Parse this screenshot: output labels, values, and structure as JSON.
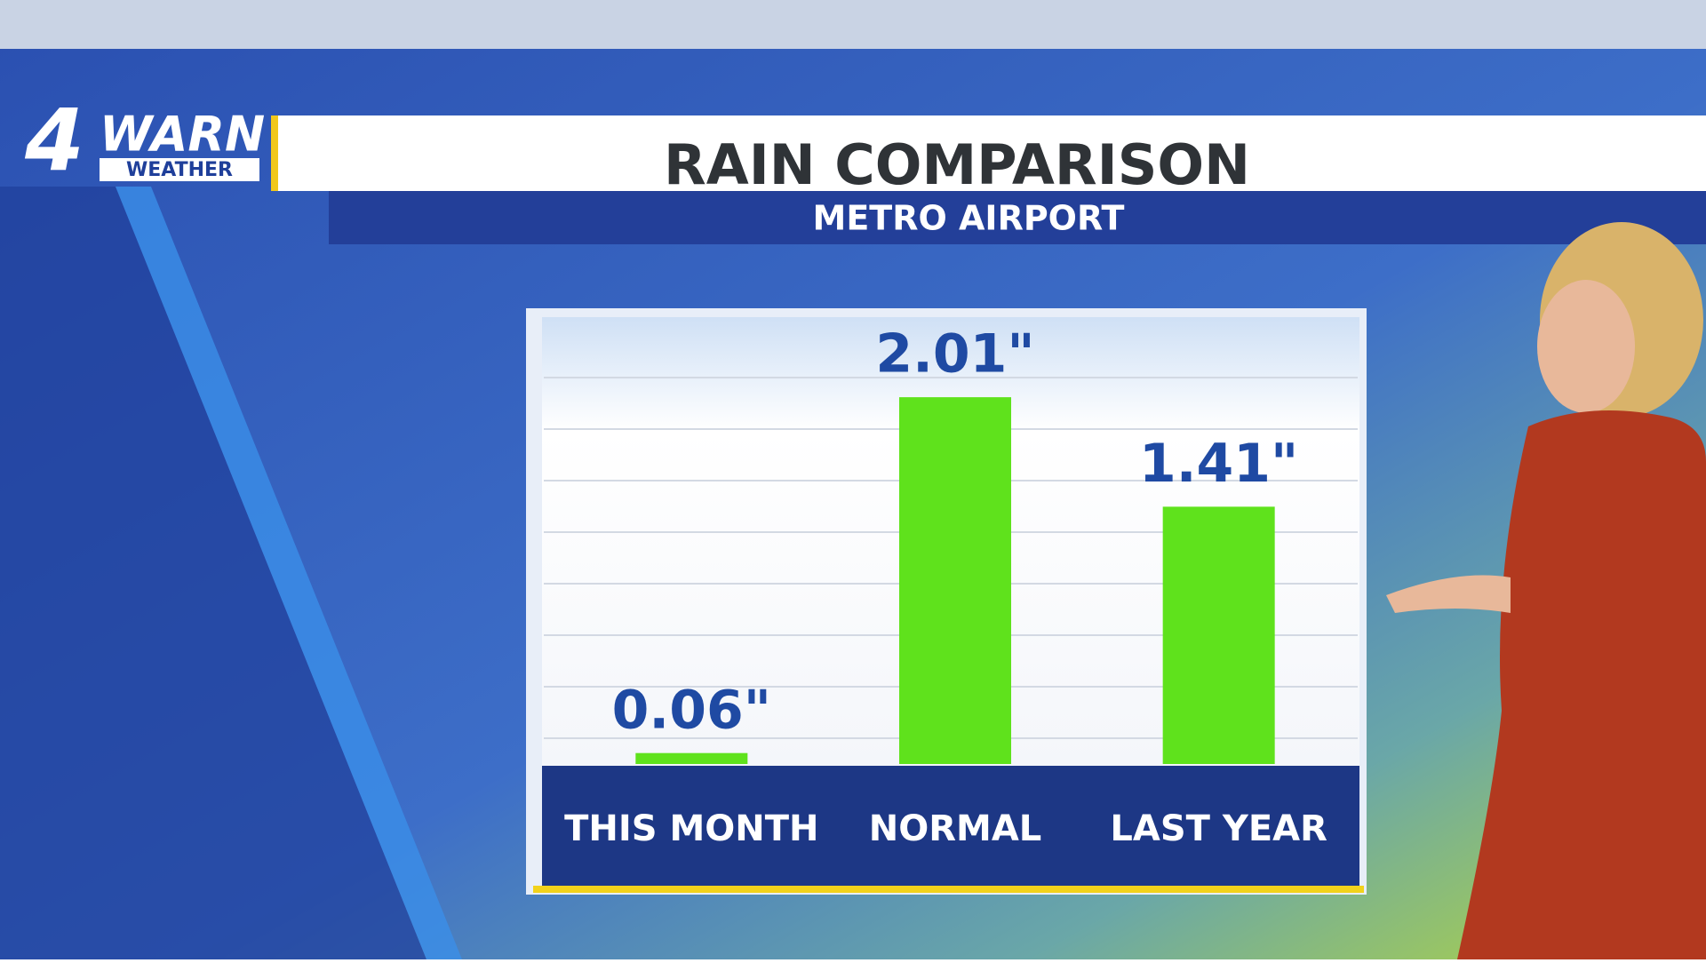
{
  "logo": {
    "number": "4",
    "word": "WARN",
    "sub": "WEATHER"
  },
  "chart_data": {
    "type": "bar",
    "title": "RAIN COMPARISON",
    "subtitle": "METRO AIRPORT",
    "categories": [
      "THIS MONTH",
      "NORMAL",
      "LAST YEAR"
    ],
    "values": [
      0.06,
      2.01,
      1.41
    ],
    "value_labels": [
      "0.06\"",
      "2.01\"",
      "1.41\""
    ],
    "color": "#5fe21c",
    "ylim": [
      0,
      2.4
    ],
    "grid": true
  }
}
